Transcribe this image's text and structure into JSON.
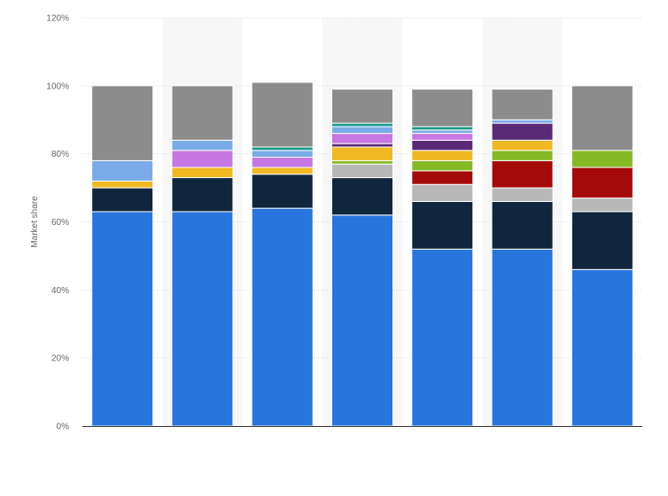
{
  "chart_data": {
    "type": "bar",
    "stacked": true,
    "title": "",
    "xlabel": "",
    "ylabel": "Market share",
    "ylim": [
      0,
      120
    ],
    "y_ticks": [
      0,
      20,
      40,
      60,
      80,
      100,
      120
    ],
    "y_tick_labels": [
      "0%",
      "20%",
      "40%",
      "60%",
      "80%",
      "100%",
      "120%"
    ],
    "grid": true,
    "legend": "none",
    "categories": [
      "",
      "",
      "",
      "",
      "",
      "",
      ""
    ],
    "series": [
      {
        "color": "#2775dd",
        "values": [
          63,
          63,
          64,
          62,
          52,
          52,
          46
        ]
      },
      {
        "color": "#10263d",
        "values": [
          7,
          10,
          10,
          11,
          14,
          14,
          17
        ]
      },
      {
        "color": "#b8b8b8",
        "values": [
          0,
          0,
          0,
          4,
          5,
          4,
          4
        ]
      },
      {
        "color": "#a50a0a",
        "values": [
          0,
          0,
          0,
          0,
          4,
          8,
          9
        ]
      },
      {
        "color": "#85b925",
        "values": [
          0,
          0,
          0,
          1,
          3,
          3,
          5
        ]
      },
      {
        "color": "#f0b823",
        "values": [
          2,
          3,
          2,
          4,
          3,
          3,
          0
        ]
      },
      {
        "color": "#5b2a76",
        "values": [
          0,
          0,
          0,
          1,
          3,
          5,
          0
        ]
      },
      {
        "color": "#c677e3",
        "values": [
          0,
          5,
          3,
          3,
          2,
          0,
          0
        ]
      },
      {
        "color": "#7aaae8",
        "values": [
          6,
          3,
          2,
          2,
          1,
          1,
          0
        ]
      },
      {
        "color": "#1e9a8a",
        "values": [
          0,
          0,
          1,
          1,
          1,
          0,
          0
        ]
      },
      {
        "color": "#8c8c8c",
        "values": [
          22,
          16,
          19,
          10,
          11,
          9,
          19
        ]
      }
    ]
  }
}
